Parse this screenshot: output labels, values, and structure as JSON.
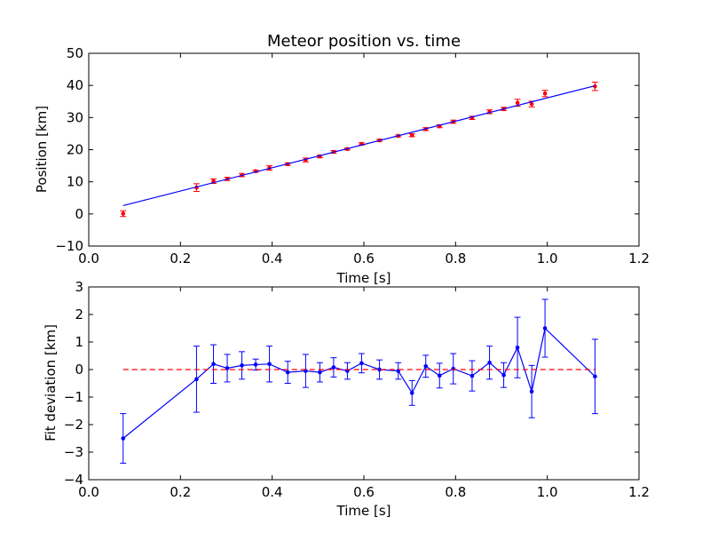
{
  "chart_data": [
    {
      "type": "scatter",
      "title": "Meteor position vs. time",
      "xlabel": "Time [s]",
      "ylabel": "Position [km]",
      "xlim": [
        0.0,
        1.2
      ],
      "ylim": [
        -10,
        50
      ],
      "xticks": [
        "0.0",
        "0.2",
        "0.4",
        "0.6",
        "0.8",
        "1.0",
        "1.2"
      ],
      "yticks": [
        "−10",
        "0",
        "10",
        "20",
        "30",
        "40",
        "50"
      ],
      "grid": false,
      "series": [
        {
          "kind": "points-with-errorbars",
          "color": "#ff0000",
          "x": [
            0.075,
            0.235,
            0.272,
            0.302,
            0.334,
            0.364,
            0.394,
            0.434,
            0.473,
            0.504,
            0.534,
            0.564,
            0.595,
            0.634,
            0.675,
            0.705,
            0.735,
            0.765,
            0.795,
            0.836,
            0.874,
            0.905,
            0.935,
            0.966,
            0.995,
            1.104
          ],
          "y": [
            0.1,
            8.2,
            10.2,
            10.9,
            12.1,
            13.3,
            14.3,
            15.5,
            16.8,
            17.9,
            19.3,
            20.2,
            21.8,
            22.9,
            24.3,
            24.5,
            26.4,
            27.3,
            28.7,
            29.9,
            31.8,
            32.7,
            34.6,
            34.2,
            37.5,
            39.7
          ],
          "yerr": [
            0.9,
            1.2,
            0.7,
            0.5,
            0.5,
            0.3,
            0.7,
            0.4,
            0.6,
            0.4,
            0.4,
            0.3,
            0.35,
            0.35,
            0.3,
            0.45,
            0.45,
            0.45,
            0.5,
            0.5,
            0.6,
            0.5,
            1.1,
            0.9,
            1.0,
            1.3
          ]
        },
        {
          "kind": "fit-line",
          "color": "#0000ff",
          "x": [
            0.075,
            1.104
          ],
          "y": [
            2.6,
            39.9
          ]
        }
      ]
    },
    {
      "type": "line",
      "title": "",
      "xlabel": "Time [s]",
      "ylabel": "Fit deviation [km]",
      "xlim": [
        0.0,
        1.2
      ],
      "ylim": [
        -4,
        3
      ],
      "xticks": [
        "0.0",
        "0.2",
        "0.4",
        "0.6",
        "0.8",
        "1.0",
        "1.2"
      ],
      "yticks": [
        "−4",
        "−3",
        "−2",
        "−1",
        "0",
        "1",
        "2",
        "3"
      ],
      "grid": false,
      "series": [
        {
          "kind": "line-with-errorbars",
          "color": "#0000ff",
          "x": [
            0.075,
            0.235,
            0.272,
            0.302,
            0.334,
            0.364,
            0.394,
            0.434,
            0.473,
            0.504,
            0.534,
            0.564,
            0.595,
            0.634,
            0.675,
            0.705,
            0.735,
            0.765,
            0.795,
            0.836,
            0.874,
            0.905,
            0.935,
            0.966,
            0.995,
            1.104
          ],
          "y": [
            -2.5,
            -0.35,
            0.2,
            0.05,
            0.15,
            0.18,
            0.2,
            -0.1,
            -0.05,
            -0.1,
            0.08,
            -0.05,
            0.23,
            0.0,
            -0.05,
            -0.85,
            0.12,
            -0.22,
            0.03,
            -0.23,
            0.25,
            -0.2,
            0.8,
            -0.8,
            1.5,
            -0.25
          ],
          "yerr": [
            0.9,
            1.2,
            0.7,
            0.5,
            0.5,
            0.2,
            0.65,
            0.4,
            0.6,
            0.35,
            0.35,
            0.3,
            0.35,
            0.35,
            0.3,
            0.45,
            0.4,
            0.45,
            0.55,
            0.55,
            0.6,
            0.45,
            1.1,
            0.95,
            1.05,
            1.35
          ]
        },
        {
          "kind": "reference-line",
          "style": "dashed",
          "color": "#ff0000",
          "x": [
            0.075,
            1.104
          ],
          "y": [
            0,
            0
          ]
        }
      ]
    }
  ]
}
